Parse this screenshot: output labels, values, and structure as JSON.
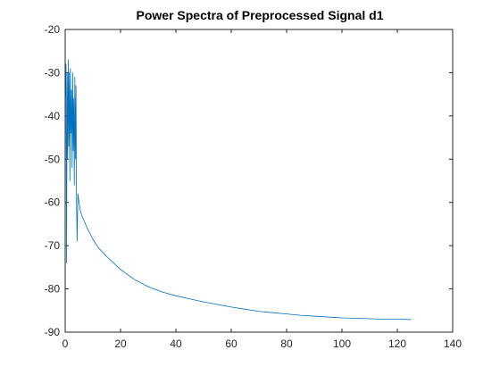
{
  "chart_data": {
    "type": "line",
    "title": "Power Spectra of Preprocessed Signal d1",
    "xlabel": "",
    "ylabel": "",
    "xlim": [
      0,
      140
    ],
    "ylim": [
      -90,
      -20
    ],
    "xticks": [
      0,
      20,
      40,
      60,
      80,
      100,
      120,
      140
    ],
    "yticks": [
      -90,
      -80,
      -70,
      -60,
      -50,
      -40,
      -30,
      -20
    ],
    "xtick_labels": [
      "0",
      "20",
      "40",
      "60",
      "80",
      "100",
      "120",
      "140"
    ],
    "ytick_labels": [
      "-90",
      "-80",
      "-70",
      "-60",
      "-50",
      "-40",
      "-30",
      "-20"
    ],
    "grid": false,
    "legend": "none",
    "line_color": "#0072BD",
    "series": [
      {
        "x": [
          0,
          0.3,
          0.5,
          0.7,
          0.9,
          1.1,
          1.3,
          1.5,
          1.7,
          1.9,
          2.1,
          2.3,
          2.5,
          2.7,
          2.9,
          3.1,
          3.3,
          3.5,
          3.7,
          3.9,
          4.1,
          4.3,
          4.6,
          5,
          5.5,
          6,
          7,
          8,
          10,
          12,
          15,
          20,
          25,
          30,
          35,
          40,
          45,
          50,
          55,
          60,
          65,
          70,
          75,
          80,
          85,
          90,
          95,
          100,
          105,
          110,
          115,
          120,
          125
        ],
        "y": [
          -37,
          -28,
          -74,
          -30,
          -50,
          -27,
          -47,
          -30,
          -55,
          -29,
          -44,
          -34,
          -52,
          -30,
          -48,
          -36,
          -56,
          -31,
          -50,
          -33,
          -60,
          -69,
          -58,
          -60,
          -62,
          -63,
          -64.5,
          -66,
          -68.5,
          -70.5,
          -72.5,
          -75.5,
          -77.8,
          -79.5,
          -80.7,
          -81.6,
          -82.3,
          -83,
          -83.6,
          -84.2,
          -84.7,
          -85.2,
          -85.5,
          -85.8,
          -86.1,
          -86.3,
          -86.5,
          -86.7,
          -86.8,
          -86.9,
          -87,
          -87,
          -87.1
        ]
      }
    ]
  }
}
